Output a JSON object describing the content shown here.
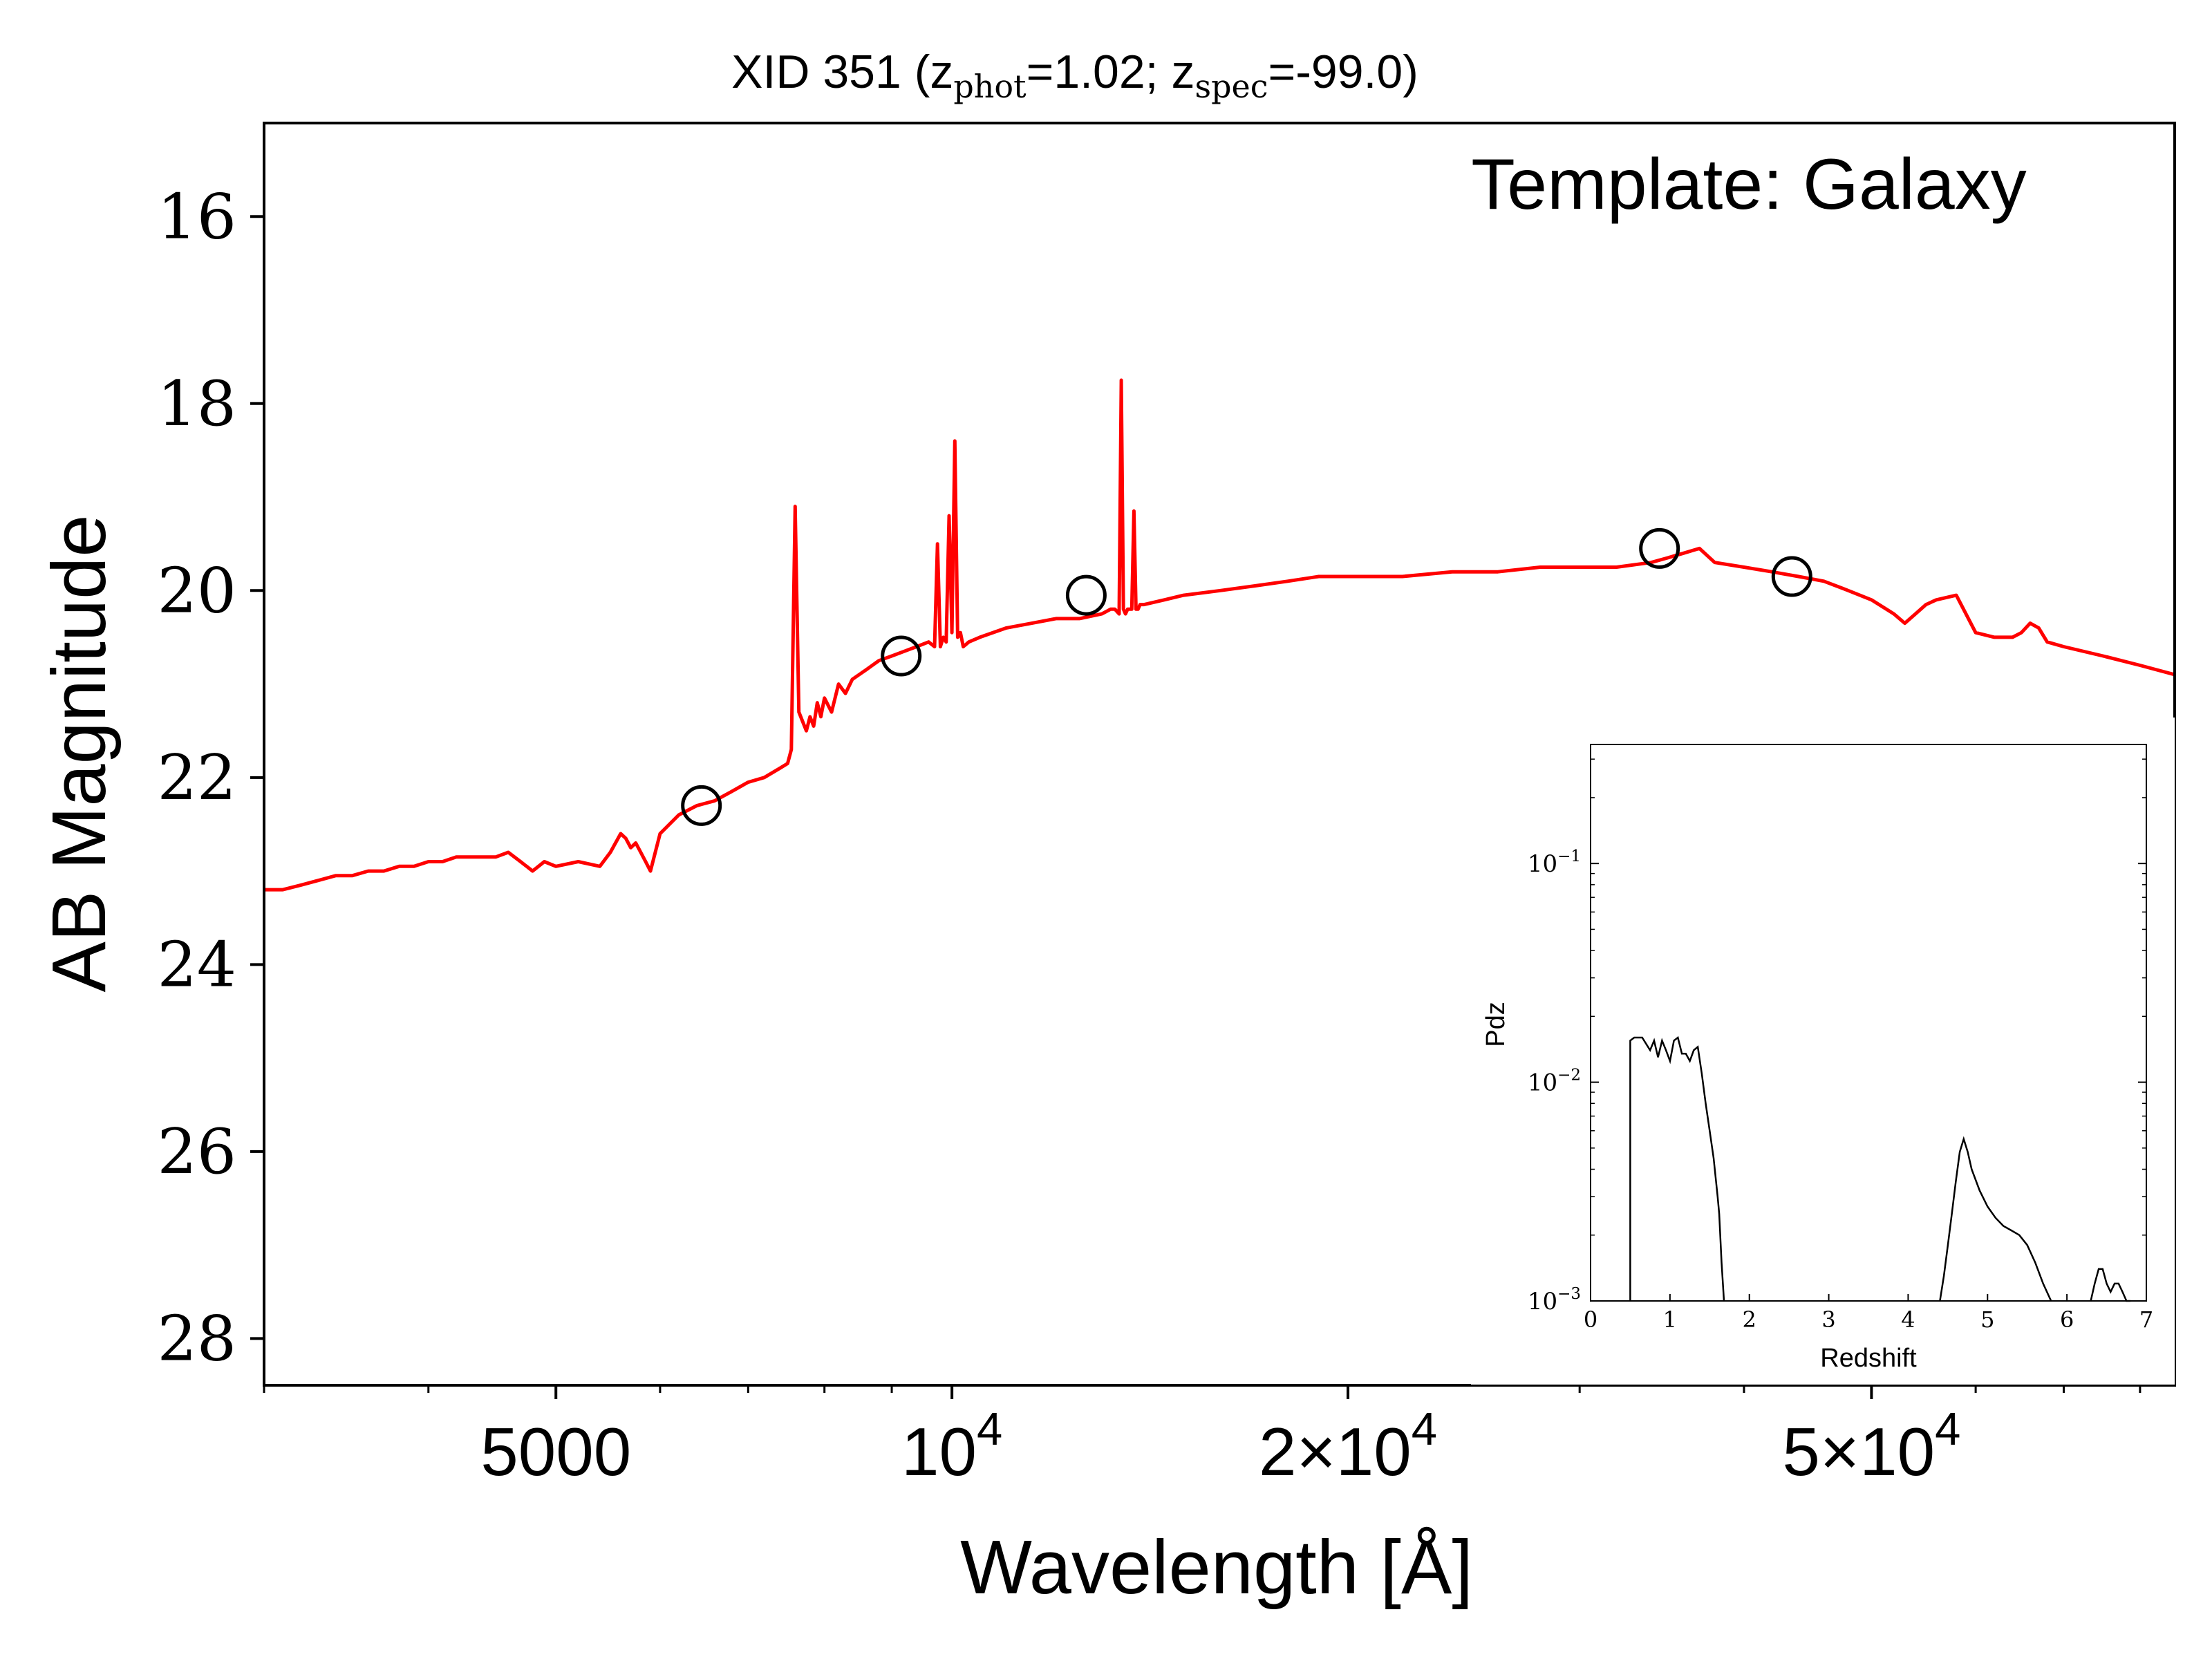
{
  "chart_data": [
    {
      "type": "line",
      "title": {
        "prefix": "XID 351 (z",
        "sub1": "phot",
        "mid": "=1.02; z",
        "sub2": "spec",
        "suffix": "=-99.0)"
      },
      "annotation": "Template: Galaxy",
      "xlabel": "Wavelength [Å]",
      "ylabel": "AB Magnitude",
      "xscale": "log",
      "xlim": [
        3000,
        85000
      ],
      "ylim": [
        28.5,
        15.0
      ],
      "y_inverted": true,
      "x_ticks": [
        {
          "value": 5000,
          "label": "5000"
        },
        {
          "value": 10000,
          "label": "10",
          "sup": "4"
        },
        {
          "value": 20000,
          "label": "2×10",
          "sup": "4"
        },
        {
          "value": 50000,
          "label": "5×10",
          "sup": "4"
        }
      ],
      "y_ticks": [
        {
          "value": 16,
          "label": "16"
        },
        {
          "value": 18,
          "label": "18"
        },
        {
          "value": 20,
          "label": "20"
        },
        {
          "value": 22,
          "label": "22"
        },
        {
          "value": 24,
          "label": "24"
        },
        {
          "value": 26,
          "label": "26"
        },
        {
          "value": 28,
          "label": "28"
        }
      ],
      "series": [
        {
          "kind": "template-spectrum",
          "color": "#ff0000",
          "x": [
            3000,
            3100,
            3200,
            3300,
            3400,
            3500,
            3600,
            3700,
            3800,
            3900,
            4000,
            4100,
            4200,
            4300,
            4400,
            4500,
            4600,
            4700,
            4800,
            4900,
            5000,
            5200,
            5400,
            5500,
            5600,
            5650,
            5700,
            5750,
            5800,
            5850,
            5900,
            6000,
            6200,
            6400,
            6600,
            6800,
            7000,
            7200,
            7400,
            7500,
            7550,
            7600,
            7650,
            7700,
            7750,
            7800,
            7850,
            7900,
            7950,
            8000,
            8100,
            8200,
            8300,
            8400,
            8500,
            8600,
            8700,
            8800,
            9000,
            9200,
            9400,
            9600,
            9700,
            9750,
            9800,
            9850,
            9900,
            9950,
            10000,
            10050,
            10100,
            10150,
            10200,
            10300,
            10500,
            11000,
            11500,
            12000,
            12500,
            13000,
            13200,
            13300,
            13400,
            13450,
            13500,
            13550,
            13600,
            13700,
            13750,
            13800,
            13850,
            13900,
            14000,
            14500,
            15000,
            16000,
            17000,
            18000,
            19000,
            20000,
            22000,
            24000,
            26000,
            28000,
            30000,
            32000,
            34000,
            35000,
            36000,
            37000,
            38000,
            40000,
            42000,
            44000,
            46000,
            48000,
            50000,
            52000,
            53000,
            54000,
            55000,
            56000,
            58000,
            60000,
            62000,
            64000,
            65000,
            66000,
            67000,
            68000,
            70000,
            75000,
            80000,
            85000
          ],
          "y": [
            23.2,
            23.2,
            23.15,
            23.1,
            23.05,
            23.05,
            23.0,
            23.0,
            22.95,
            22.95,
            22.9,
            22.9,
            22.85,
            22.85,
            22.85,
            22.85,
            22.8,
            22.9,
            23.0,
            22.9,
            22.95,
            22.9,
            22.95,
            22.8,
            22.6,
            22.65,
            22.75,
            22.7,
            22.8,
            22.9,
            23.0,
            22.6,
            22.4,
            22.3,
            22.25,
            22.15,
            22.05,
            22.0,
            21.9,
            21.85,
            21.7,
            19.1,
            21.3,
            21.4,
            21.5,
            21.35,
            21.45,
            21.2,
            21.35,
            21.15,
            21.3,
            21.0,
            21.1,
            20.95,
            20.9,
            20.85,
            20.8,
            20.75,
            20.7,
            20.65,
            20.6,
            20.55,
            20.6,
            19.5,
            20.6,
            20.5,
            20.55,
            19.2,
            20.45,
            18.4,
            20.5,
            20.45,
            20.6,
            20.55,
            20.5,
            20.4,
            20.35,
            20.3,
            20.3,
            20.25,
            20.2,
            20.2,
            20.25,
            17.75,
            20.2,
            20.25,
            20.2,
            20.2,
            19.15,
            20.2,
            20.2,
            20.15,
            20.15,
            20.1,
            20.05,
            20.0,
            19.95,
            19.9,
            19.85,
            19.85,
            19.85,
            19.8,
            19.8,
            19.75,
            19.75,
            19.75,
            19.7,
            19.65,
            19.6,
            19.55,
            19.7,
            19.75,
            19.8,
            19.85,
            19.9,
            20.0,
            20.1,
            20.25,
            20.35,
            20.25,
            20.15,
            20.1,
            20.05,
            20.45,
            20.5,
            20.5,
            20.45,
            20.35,
            20.4,
            20.55,
            20.6,
            20.7,
            20.8,
            20.9
          ]
        },
        {
          "kind": "observed-photometry",
          "marker": "open-circle",
          "color": "#000000",
          "x": [
            6450,
            9150,
            12650,
            34500,
            43500
          ],
          "y": [
            22.3,
            20.7,
            20.05,
            19.55,
            19.85
          ]
        }
      ]
    },
    {
      "type": "line",
      "role": "inset",
      "xlabel": "Redshift",
      "ylabel": "Pdz",
      "xlim": [
        0,
        7
      ],
      "ylim": [
        0.001,
        0.35
      ],
      "yscale": "log",
      "x_ticks": [
        {
          "value": 0,
          "label": "0"
        },
        {
          "value": 1,
          "label": "1"
        },
        {
          "value": 2,
          "label": "2"
        },
        {
          "value": 3,
          "label": "3"
        },
        {
          "value": 4,
          "label": "4"
        },
        {
          "value": 5,
          "label": "5"
        },
        {
          "value": 6,
          "label": "6"
        },
        {
          "value": 7,
          "label": "7"
        }
      ],
      "y_ticks": [
        {
          "value": 0.001,
          "label": "10",
          "sup": "−3"
        },
        {
          "value": 0.01,
          "label": "10",
          "sup": "−2"
        },
        {
          "value": 0.1,
          "label": "10",
          "sup": "−1"
        }
      ],
      "series": [
        {
          "color": "#000000",
          "segments": [
            {
              "x": [
                0.5,
                0.5,
                0.55,
                0.65,
                0.75,
                0.8,
                0.85,
                0.9,
                0.95,
                1.0,
                1.05,
                1.1,
                1.15,
                1.2,
                1.25,
                1.3,
                1.35,
                1.4,
                1.45,
                1.5,
                1.55,
                1.6,
                1.62,
                1.65,
                1.68
              ],
              "y": [
                0.001,
                0.0155,
                0.016,
                0.016,
                0.014,
                0.0155,
                0.013,
                0.0155,
                0.014,
                0.0125,
                0.0155,
                0.016,
                0.0135,
                0.0135,
                0.0125,
                0.014,
                0.0145,
                0.011,
                0.008,
                0.006,
                0.0045,
                0.003,
                0.0025,
                0.0015,
                0.001
              ]
            },
            {
              "x": [
                4.4,
                4.45,
                4.5,
                4.55,
                4.6,
                4.65,
                4.7,
                4.75,
                4.8,
                4.9,
                5.0,
                5.1,
                5.2,
                5.3,
                5.4,
                5.5,
                5.6,
                5.7,
                5.8
              ],
              "y": [
                0.001,
                0.0013,
                0.0018,
                0.0025,
                0.0035,
                0.0048,
                0.0055,
                0.0048,
                0.004,
                0.0032,
                0.0027,
                0.0024,
                0.0022,
                0.0021,
                0.002,
                0.0018,
                0.0015,
                0.0012,
                0.001
              ]
            },
            {
              "x": [
                6.3,
                6.35,
                6.4,
                6.45,
                6.5,
                6.55,
                6.6,
                6.65,
                6.7,
                6.75,
                6.8
              ],
              "y": [
                0.001,
                0.0012,
                0.0014,
                0.0014,
                0.0012,
                0.0011,
                0.0012,
                0.0012,
                0.0011,
                0.001,
                0.001
              ]
            }
          ]
        }
      ]
    }
  ]
}
